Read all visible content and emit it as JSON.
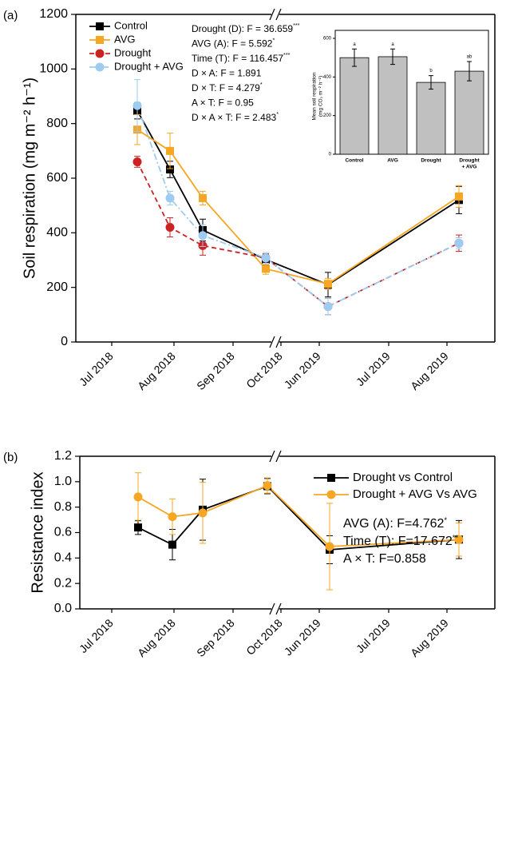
{
  "chart_data": [
    {
      "type": "line",
      "panel_label": "(a)",
      "y_label": "Soil respiration (mg m⁻² h⁻¹)",
      "categories": [
        "Jul 2018",
        "Aug 2018",
        "Sep 2018",
        "Oct 2018",
        "Jun 2019",
        "Jul 2019",
        "Aug 2019"
      ],
      "ylim": [
        0,
        1200
      ],
      "yticks": [
        0,
        200,
        400,
        600,
        800,
        1000,
        1200
      ],
      "legend": "upper left",
      "series": [
        {
          "name": "Control",
          "color": "#000000",
          "marker": "square",
          "linestyle": "solid",
          "values": [
            847,
            632,
            410,
            302,
            210,
            null,
            520
          ],
          "errors": [
            30,
            30,
            40,
            20,
            45,
            null,
            50
          ]
        },
        {
          "name": "AVG",
          "color": "#f5a623",
          "marker": "square",
          "linestyle": "solid",
          "values": [
            778,
            700,
            527,
            268,
            213,
            null,
            533
          ],
          "errors": [
            55,
            65,
            25,
            20,
            20,
            null,
            40
          ]
        },
        {
          "name": "Drought",
          "color": "#cc2222",
          "marker": "circle",
          "linestyle": "dashed",
          "values": [
            660,
            420,
            353,
            308,
            130,
            null,
            362
          ],
          "errors": [
            20,
            35,
            35,
            15,
            30,
            null,
            30
          ]
        },
        {
          "name": "Drought + AVG",
          "color": "#9ecbf0",
          "marker": "circle",
          "linestyle": "dashdot",
          "values": [
            866,
            527,
            390,
            308,
            130,
            null,
            362
          ],
          "errors": [
            95,
            25,
            40,
            20,
            30,
            null,
            20
          ]
        }
      ],
      "annotations": [
        {
          "text": "Drought (D): F = 36.659",
          "sig": "***"
        },
        {
          "text": "AVG (A): F = 5.592",
          "sig": "*"
        },
        {
          "text": "Time (T): F = 116.457",
          "sig": "***"
        },
        {
          "text": "D × A: F = 1.891",
          "sig": ""
        },
        {
          "text": "D × T: F = 4.279",
          "sig": "*"
        },
        {
          "text": "A × T: F = 0.95",
          "sig": ""
        },
        {
          "text": "D × A × T: F = 2.483",
          "sig": "*"
        }
      ]
    },
    {
      "type": "bar",
      "y_label": [
        "Mean soil respiration",
        "(mg CO₂ m⁻² h⁻¹)"
      ],
      "categories": [
        [
          "Control"
        ],
        [
          "AVG"
        ],
        [
          "Drought"
        ],
        [
          "Drought",
          "+ AVG"
        ]
      ],
      "values": [
        500,
        505,
        372,
        430
      ],
      "errors": [
        45,
        40,
        35,
        50
      ],
      "letters": [
        "a",
        "a",
        "b",
        "ab"
      ],
      "color": "#c0c0c0",
      "ylim": [
        0,
        600
      ],
      "yticks": [
        0,
        200,
        400,
        600
      ]
    },
    {
      "type": "line",
      "panel_label": "(b)",
      "y_label": "Resistance index",
      "categories": [
        "Jul 2018",
        "Aug 2018",
        "Sep 2018",
        "Oct 2018",
        "Jun 2019",
        "Jul 2019",
        "Aug 2019"
      ],
      "ylim": [
        0,
        1.2
      ],
      "yticks": [
        {
          "value": 0,
          "label": "0.0"
        },
        0.2,
        0.4,
        0.6,
        0.8,
        {
          "value": 1,
          "label": "1.0"
        },
        1.2
      ],
      "legend": "upper right",
      "series": [
        {
          "name": "Drought vs Control",
          "color": "#000000",
          "marker": "square",
          "linestyle": "solid",
          "values": [
            0.64,
            0.505,
            0.78,
            0.965,
            0.465,
            null,
            0.545
          ],
          "errors": [
            0.055,
            0.12,
            0.24,
            0.06,
            0.11,
            null,
            0.15
          ]
        },
        {
          "name": "Drought + AVG Vs AVG",
          "color": "#f5a623",
          "marker": "circle",
          "linestyle": "solid",
          "values": [
            0.88,
            0.725,
            0.755,
            0.97,
            0.49,
            null,
            0.545
          ],
          "errors": [
            0.19,
            0.14,
            0.24,
            0.06,
            0.34,
            null,
            0.13
          ]
        }
      ],
      "annotations": [
        {
          "text": "AVG (A): F=4.762",
          "sig": "*"
        },
        {
          "text": "Time (T): F=17.672",
          "sig": "**"
        },
        {
          "text": "A × T: F=0.858",
          "sig": ""
        }
      ]
    }
  ]
}
